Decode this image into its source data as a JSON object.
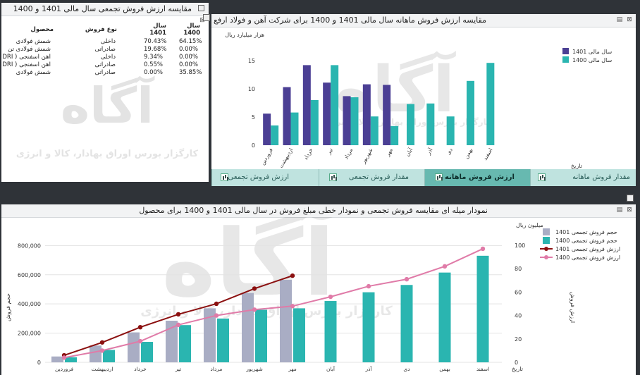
{
  "colors": {
    "c1401": "#4b3f94",
    "c1400": "#2ab5b0",
    "cum1401": "#a9adc4",
    "line1401": "#8b1010",
    "line1400": "#e07ba8"
  },
  "panel_table": {
    "title": "مقایسه ارزش فروش تجمعی سال مالی 1401 و 1400",
    "headers": {
      "product": "محصول",
      "sale_type": "نوع فروش",
      "year1401": "سال 1401",
      "year1400": "سال 1400"
    },
    "rows": [
      {
        "product": "شمش فولادی",
        "type": "داخلی",
        "v1401": "70.43%",
        "v1400": "64.15%"
      },
      {
        "product": "شمش فولادی تن",
        "type": "صادراتی",
        "v1401": "19.68%",
        "v1400": "0.00%"
      },
      {
        "product": "آهن اسفنجی ( DRI )",
        "type": "داخلی",
        "v1401": "9.34%",
        "v1400": "0.00%"
      },
      {
        "product": "آهن اسفنجی ( DRI )",
        "type": "صادراتی",
        "v1401": "0.55%",
        "v1400": "0.00%"
      },
      {
        "product": "شمش فولادی",
        "type": "صادراتی",
        "v1401": "0.00%",
        "v1400": "35.85%"
      }
    ]
  },
  "watermark": {
    "brand": "آگاه",
    "sub": "کارگزار بورس اوراق بهادار، کالا و انرژی"
  },
  "panel_monthly": {
    "title": "مقایسه ارزش فروش ماهانه سال مالی 1401 و 1400 برای شرکت آهن و فولاد ارفع"
  },
  "tabs": [
    {
      "label": "مقدار فروش ماهانه",
      "active": false
    },
    {
      "label": "ارزش فروش ماهانه",
      "active": true
    },
    {
      "label": "مقدار فروش تجمعی",
      "active": false
    },
    {
      "label": "ارزش فروش تجمعی",
      "active": false
    }
  ],
  "panel_cumulative": {
    "title": "نمودار میله ای مقایسه فروش تجمعی و نمودار خطی مبلغ فروش در سال مالی 1401 و 1400 برای محصول"
  },
  "chart_data": [
    {
      "type": "bar",
      "title": "",
      "ylabel": "هزار میلیارد ریال",
      "xlabel": "تاریخ",
      "ylim": [
        0,
        16
      ],
      "yticks": [
        0,
        5,
        10,
        15
      ],
      "categories": [
        "فروردین",
        "اردیبهشت",
        "خرداد",
        "تیر",
        "مرداد",
        "شهریور",
        "مهر",
        "آبان",
        "آذر",
        "دی",
        "بهمن",
        "اسفند"
      ],
      "series": [
        {
          "name": "سال مالی 1401",
          "values": [
            5.6,
            10.3,
            14.2,
            11.1,
            8.7,
            10.8,
            10.7,
            null,
            null,
            null,
            null,
            null
          ]
        },
        {
          "name": "سال مالی 1400",
          "values": [
            3.5,
            5.8,
            8.0,
            14.2,
            8.5,
            5.1,
            3.4,
            7.3,
            7.4,
            5.1,
            11.4,
            14.6
          ]
        }
      ],
      "legend": "top-right"
    },
    {
      "type": "bar",
      "title": "",
      "ylabel": "حجم فروش",
      "y2label": "ارزش فروش",
      "y2unit": "میلیون ریال",
      "xlabel": "تاریخ",
      "ylim": [
        0,
        850000
      ],
      "yticks": [
        0,
        200000,
        400000,
        600000,
        800000
      ],
      "yticklabels": [
        "0",
        "200,000",
        "400,000",
        "600,000",
        "800,000"
      ],
      "y2lim": [
        0,
        106
      ],
      "y2ticks": [
        0,
        20,
        40,
        60,
        80,
        100
      ],
      "categories": [
        "فروردین",
        "اردیبهشت",
        "خرداد",
        "تیر",
        "مرداد",
        "شهریور",
        "مهر",
        "آبان",
        "آذر",
        "دی",
        "بهمن",
        "اسفند"
      ],
      "series": [
        {
          "name": "حجم فروش تجمعی 1401",
          "kind": "bar",
          "values": [
            40000,
            115000,
            205000,
            285000,
            370000,
            475000,
            565000,
            null,
            null,
            null,
            null,
            null
          ]
        },
        {
          "name": "حجم فروش تجمعی 1400",
          "kind": "bar",
          "values": [
            35000,
            85000,
            140000,
            255000,
            300000,
            360000,
            370000,
            420000,
            480000,
            530000,
            615000,
            730000
          ]
        },
        {
          "name": "ارزش فروش تجمعی 1401",
          "kind": "line",
          "axis": "y2",
          "values": [
            6,
            17,
            30,
            41,
            50,
            63,
            74,
            null,
            null,
            null,
            null,
            null
          ]
        },
        {
          "name": "ارزش فروش تجمعی 1400",
          "kind": "line",
          "axis": "y2",
          "values": [
            4,
            10,
            18,
            32,
            40,
            45,
            48,
            56,
            65,
            71,
            82,
            97
          ]
        }
      ],
      "legend": "top-right"
    }
  ]
}
